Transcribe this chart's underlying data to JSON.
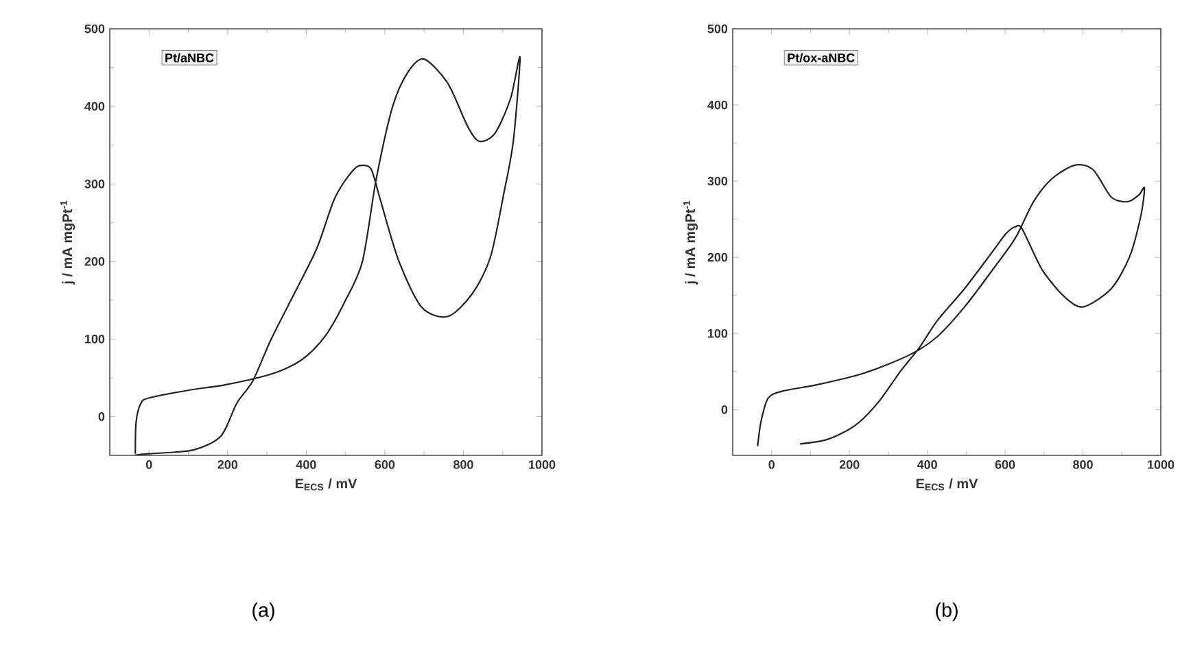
{
  "chart_data": [
    {
      "type": "line",
      "xlabel": "E$_{ECS}$ / mV",
      "ylabel": "j / mA mgPt$^{-1}$",
      "xlim": [
        -100,
        1000
      ],
      "ylim": [
        -50,
        500
      ],
      "xticks": [
        0,
        200,
        400,
        600,
        800,
        1000
      ],
      "yticks": [
        0,
        100,
        200,
        300,
        400,
        500
      ],
      "series": [
        {
          "color": "#222222",
          "x": [
            -35,
            -33,
            -21,
            0,
            101,
            194,
            299,
            357,
            403,
            450,
            497,
            543,
            578,
            620,
            660,
            700,
            760,
            810,
            840,
            880,
            920,
            944,
            927,
            903,
            869,
            822,
            760,
            694,
            636,
            590,
            566,
            543,
            520,
            473,
            427,
            369,
            310,
            264,
            223,
            183,
            113,
            0,
            -38
          ],
          "values": [
            -48,
            -7,
            17,
            24,
            34,
            41,
            53,
            64,
            79,
            105,
            147,
            200,
            306,
            400,
            445,
            461,
            430,
            375,
            355,
            365,
            410,
            463,
            355,
            288,
            206,
            158,
            129,
            141,
            200,
            277,
            318,
            324,
            318,
            282,
            217,
            158,
            99,
            46,
            17,
            -25,
            -43,
            -48,
            -50
          ]
        }
      ],
      "annotations": [
        "Pt/aNBC",
        "(a)"
      ]
    },
    {
      "type": "line",
      "xlabel": "E$_{ECS}$ / mV",
      "ylabel": "j / mA mgPt$^{-1}$",
      "xlim": [
        -100,
        1000
      ],
      "ylim": [
        -60,
        500
      ],
      "xticks": [
        0,
        200,
        400,
        600,
        800,
        1000
      ],
      "yticks": [
        0,
        100,
        200,
        300,
        400,
        500
      ],
      "series": [
        {
          "color": "#222222",
          "x": [
            -36,
            -27,
            -9,
            26,
            120,
            238,
            355,
            426,
            496,
            567,
            626,
            673,
            720,
            779,
            826,
            873,
            915,
            944,
            958,
            949,
            920,
            873,
            802,
            755,
            696,
            644,
            626,
            602,
            567,
            496,
            426,
            379,
            332,
            273,
            214,
            144,
            73
          ],
          "values": [
            -48,
            -15,
            15,
            24,
            33,
            48,
            72,
            96,
            135,
            183,
            225,
            273,
            303,
            321,
            315,
            279,
            273,
            282,
            291,
            255,
            201,
            159,
            135,
            147,
            183,
            237,
            240,
            231,
            207,
            159,
            117,
            81,
            51,
            9,
            -21,
            -39,
            -45
          ]
        }
      ],
      "annotations": [
        "Pt/ox-aNBC",
        "(b)"
      ]
    }
  ]
}
